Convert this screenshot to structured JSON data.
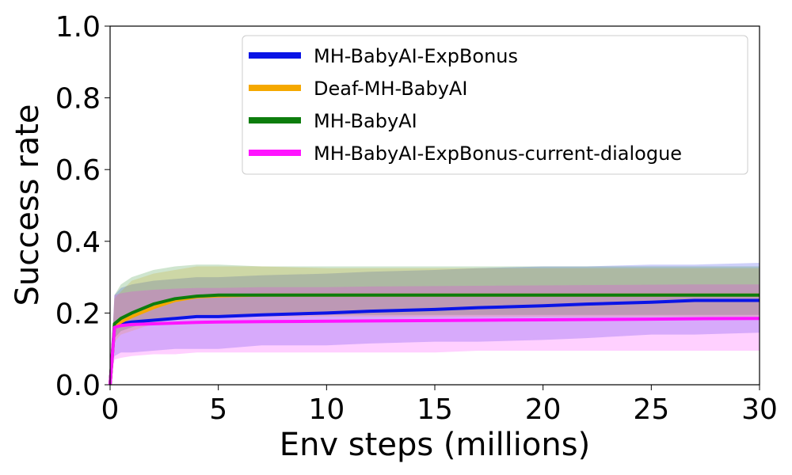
{
  "chart_data": {
    "type": "line",
    "xlabel": "Env steps (millions)",
    "ylabel": "Success rate",
    "xlim": [
      0,
      30
    ],
    "ylim": [
      0.0,
      1.0
    ],
    "xticks": [
      "0",
      "5",
      "10",
      "15",
      "20",
      "25",
      "30"
    ],
    "yticks": [
      "0.0",
      "0.2",
      "0.4",
      "0.6",
      "0.8",
      "1.0"
    ],
    "grid": false,
    "legend_position": "top-right",
    "x": [
      0,
      0.2,
      0.5,
      1,
      2,
      3,
      4,
      5,
      7,
      10,
      12,
      15,
      17,
      20,
      22,
      25,
      27,
      30
    ],
    "series": [
      {
        "name": "MH-BabyAI-ExpBonus",
        "color": "#0a14e6",
        "values": [
          0.0,
          0.16,
          0.17,
          0.175,
          0.18,
          0.185,
          0.19,
          0.19,
          0.195,
          0.2,
          0.205,
          0.21,
          0.215,
          0.22,
          0.225,
          0.23,
          0.235,
          0.235
        ],
        "lower": [
          0.0,
          0.08,
          0.09,
          0.09,
          0.095,
          0.1,
          0.1,
          0.1,
          0.11,
          0.11,
          0.115,
          0.12,
          0.12,
          0.125,
          0.13,
          0.14,
          0.14,
          0.145
        ],
        "upper": [
          0.0,
          0.25,
          0.27,
          0.28,
          0.29,
          0.295,
          0.3,
          0.3,
          0.305,
          0.31,
          0.315,
          0.32,
          0.325,
          0.33,
          0.33,
          0.335,
          0.335,
          0.34
        ]
      },
      {
        "name": "Deaf-MH-BabyAI",
        "color": "#f5a800",
        "values": [
          0.0,
          0.16,
          0.175,
          0.19,
          0.215,
          0.235,
          0.245,
          0.248,
          0.25,
          0.25,
          0.25,
          0.25,
          0.25,
          0.25,
          0.25,
          0.25,
          0.25,
          0.25
        ],
        "lower": [
          0.0,
          0.12,
          0.14,
          0.15,
          0.17,
          0.185,
          0.19,
          0.19,
          0.19,
          0.19,
          0.19,
          0.19,
          0.19,
          0.19,
          0.19,
          0.19,
          0.19,
          0.19
        ],
        "upper": [
          0.0,
          0.24,
          0.26,
          0.29,
          0.31,
          0.32,
          0.33,
          0.33,
          0.33,
          0.325,
          0.325,
          0.325,
          0.325,
          0.325,
          0.325,
          0.325,
          0.325,
          0.325
        ]
      },
      {
        "name": "MH-BabyAI",
        "color": "#0d7d0d",
        "values": [
          0.0,
          0.17,
          0.185,
          0.2,
          0.225,
          0.24,
          0.247,
          0.25,
          0.25,
          0.25,
          0.25,
          0.25,
          0.25,
          0.25,
          0.25,
          0.25,
          0.25,
          0.25
        ],
        "lower": [
          0.0,
          0.13,
          0.15,
          0.16,
          0.18,
          0.19,
          0.195,
          0.195,
          0.195,
          0.195,
          0.195,
          0.195,
          0.195,
          0.195,
          0.195,
          0.195,
          0.195,
          0.195
        ],
        "upper": [
          0.0,
          0.25,
          0.28,
          0.3,
          0.32,
          0.33,
          0.335,
          0.335,
          0.33,
          0.33,
          0.33,
          0.33,
          0.33,
          0.33,
          0.33,
          0.33,
          0.33,
          0.33
        ]
      },
      {
        "name": "MH-BabyAI-ExpBonus-current-dialogue",
        "color": "#ff14ff",
        "values": [
          0.0,
          0.16,
          0.165,
          0.168,
          0.17,
          0.172,
          0.174,
          0.175,
          0.176,
          0.177,
          0.178,
          0.179,
          0.18,
          0.181,
          0.182,
          0.183,
          0.184,
          0.185
        ],
        "lower": [
          0.0,
          0.07,
          0.075,
          0.08,
          0.085,
          0.085,
          0.09,
          0.09,
          0.09,
          0.09,
          0.09,
          0.09,
          0.095,
          0.095,
          0.095,
          0.095,
          0.095,
          0.095
        ],
        "upper": [
          0.0,
          0.25,
          0.255,
          0.26,
          0.265,
          0.268,
          0.27,
          0.27,
          0.272,
          0.272,
          0.274,
          0.275,
          0.276,
          0.277,
          0.278,
          0.279,
          0.28,
          0.28
        ]
      }
    ]
  }
}
